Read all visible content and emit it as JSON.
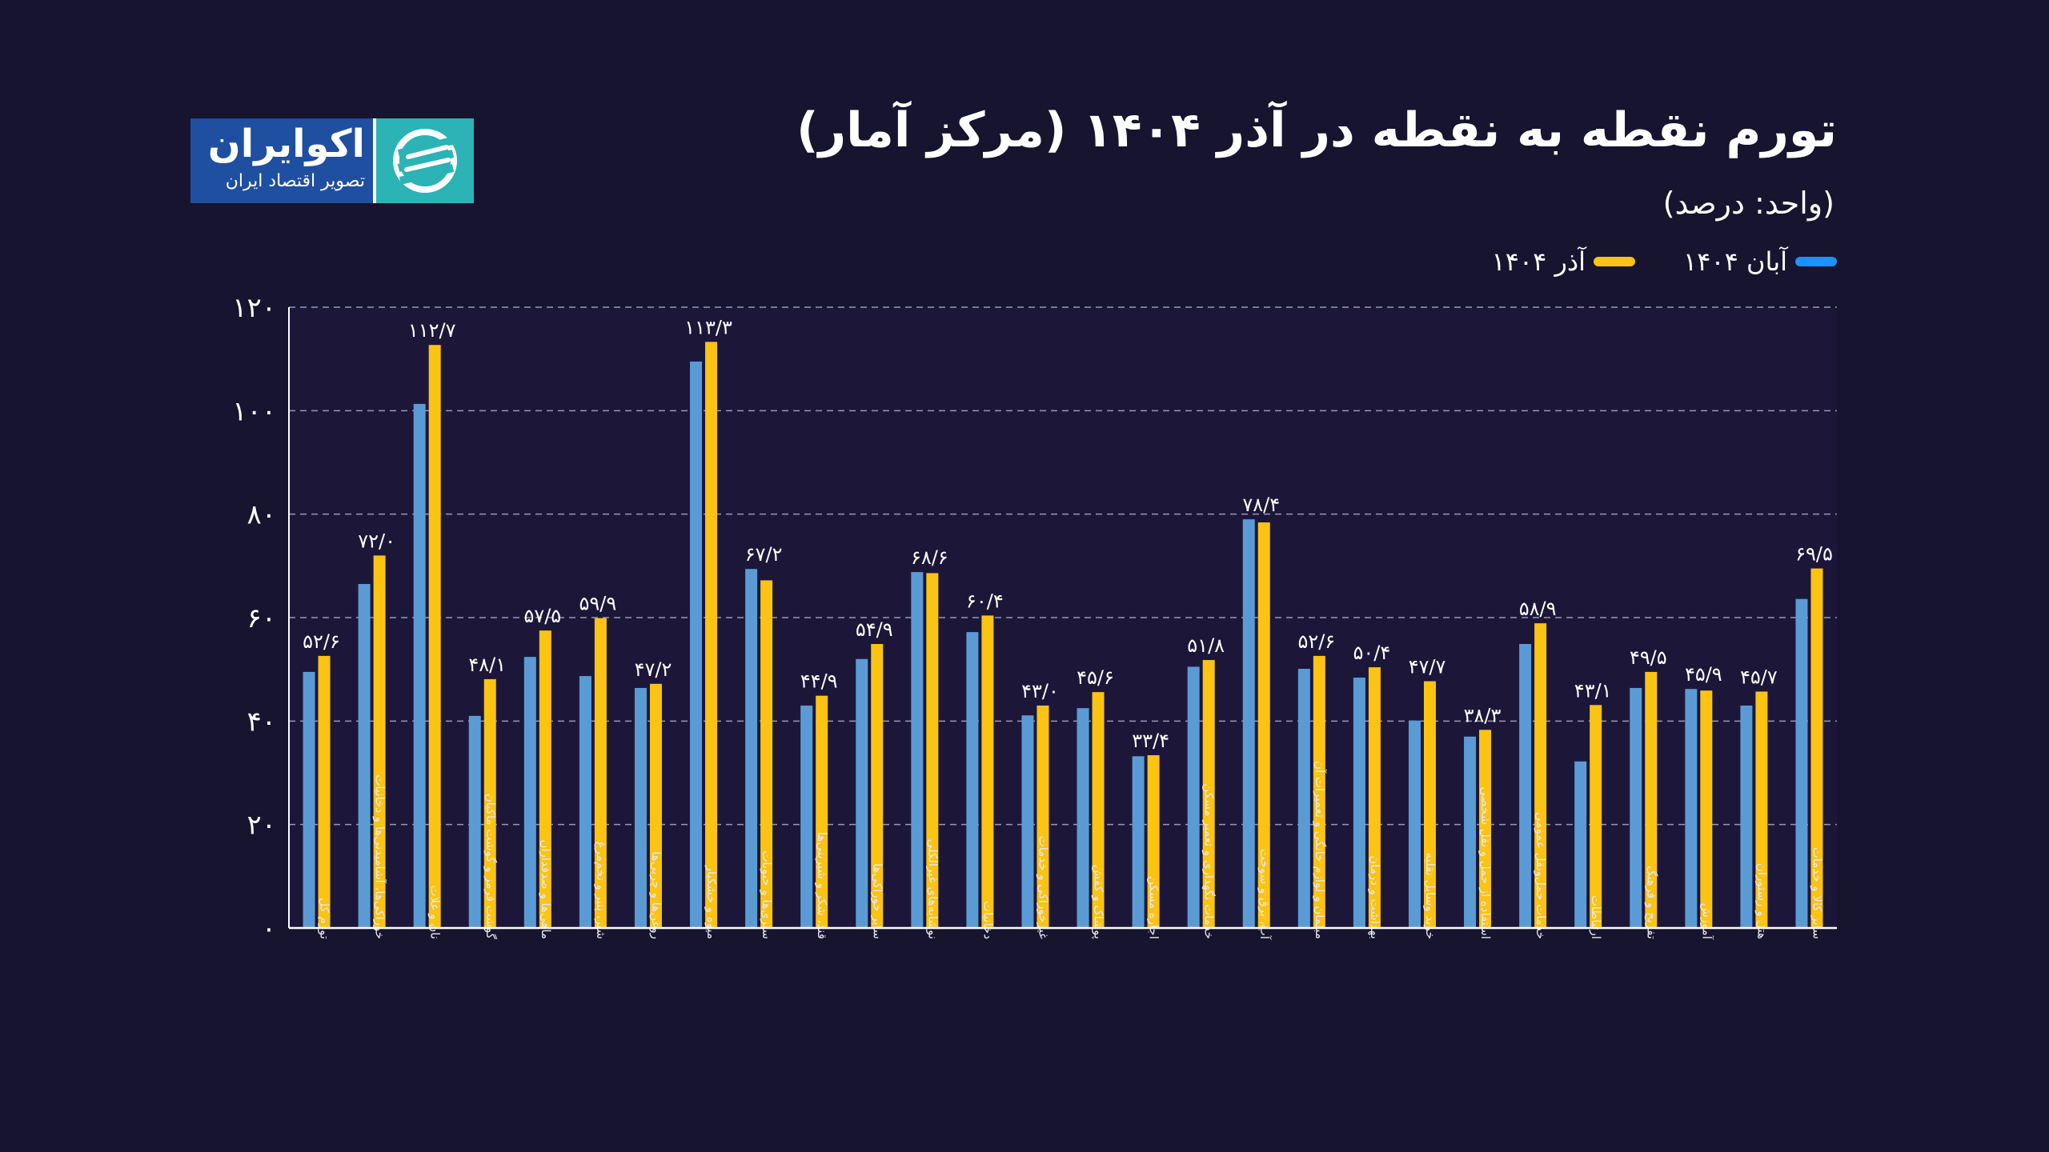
{
  "logo": {
    "name": "اکوایران",
    "tagline": "تصویر اقتصاد ایران"
  },
  "header": {
    "title": "تورم نقطه به نقطه  در آذر ۱۴۰۴ (مرکز آمار)",
    "unit": "(واحد: درصد)"
  },
  "colors": {
    "background": "#16142f",
    "plot_background": "#1c1739",
    "aban": "#5b9bd5",
    "azar": "#fbc312",
    "legend_aban": "#1e90ff"
  },
  "chart_data": {
    "type": "bar",
    "title": "تورم نقطه به نقطه  در آذر ۱۴۰۴ (مرکز آمار)",
    "ylabel": "(واحد: درصد)",
    "xlabel": "",
    "ylim": [
      0,
      120
    ],
    "yticks": [
      0,
      20,
      40,
      60,
      80,
      100,
      120
    ],
    "ytick_labels": [
      "۰",
      "۲۰",
      "۴۰",
      "۶۰",
      "۸۰",
      "۱۰۰",
      "۱۲۰"
    ],
    "grid": true,
    "legend_position": "top-right",
    "categories": [
      "تورم کل",
      "خوراکی‌ها، آشامیدنی‌ها و دخانیات",
      "نان و غلات",
      "گوشت قرمز و گوشت ماکیان",
      "ماهی‌ها و صدفداران",
      "شیر، پنیر و تخم‌مرغ",
      "روغن‌ها و چربی‌ها",
      "میوه و خشکبار",
      "سبزی‌ها و حبوبات",
      "قند، شکر و شیرینی‌ها",
      "سایر خوراکی‌ها",
      "نوشابه‌های غیرالکلی",
      "دخانیات",
      "غیرخوراکی و خدمات",
      "پوشاک و کفش",
      "اجاره مسکن",
      "خدمات نگهداری و تعمیر مسکن",
      "آب، برق و سوخت",
      "مبلمان و لوازم خانگی و تعمیرات آن",
      "بهداشت و درمان",
      "خرید وسایل نقلیه",
      "استفاده از حمل و نقل شخصی",
      "خدمات حمل‌ونقل عمومی",
      "ارتباطات",
      "تفریح و فرهنگ",
      "آموزش",
      "هتل و رستوران",
      "سایر کالا و خدمات"
    ],
    "series": [
      {
        "name": "آبان ۱۴۰۴",
        "values": [
          49.5,
          66.5,
          101.3,
          41.0,
          52.4,
          48.7,
          46.4,
          109.5,
          69.4,
          43.0,
          52.0,
          68.8,
          57.2,
          41.1,
          42.5,
          33.2,
          50.5,
          79.0,
          50.1,
          48.4,
          40.1,
          37.0,
          54.9,
          32.2,
          46.4,
          46.2,
          43.0,
          63.6
        ]
      },
      {
        "name": "آذر ۱۴۰۴",
        "values": [
          52.6,
          72.0,
          112.7,
          48.1,
          57.5,
          59.9,
          47.2,
          113.3,
          67.2,
          44.9,
          54.9,
          68.6,
          60.4,
          43.0,
          45.6,
          33.4,
          51.8,
          78.4,
          52.6,
          50.4,
          47.7,
          38.3,
          58.9,
          43.1,
          49.5,
          45.9,
          45.7,
          69.5
        ]
      }
    ],
    "data_labels": [
      "۵۲/۶",
      "۷۲/۰",
      "۱۱۲/۷",
      "۴۸/۱",
      "۵۷/۵",
      "۵۹/۹",
      "۴۷/۲",
      "۱۱۳/۳",
      "۶۷/۲",
      "۴۴/۹",
      "۵۴/۹",
      "۶۸/۶",
      "۶۰/۴",
      "۴۳/۰",
      "۴۵/۶",
      "۳۳/۴",
      "۵۱/۸",
      "۷۸/۴",
      "۵۲/۶",
      "۵۰/۴",
      "۴۷/۷",
      "۳۸/۳",
      "۵۸/۹",
      "۴۳/۱",
      "۴۹/۵",
      "۴۵/۹",
      "۴۵/۷",
      "۶۹/۵"
    ]
  },
  "legend": [
    {
      "label": "آبان ۱۴۰۴"
    },
    {
      "label": "آذر ۱۴۰۴"
    }
  ]
}
